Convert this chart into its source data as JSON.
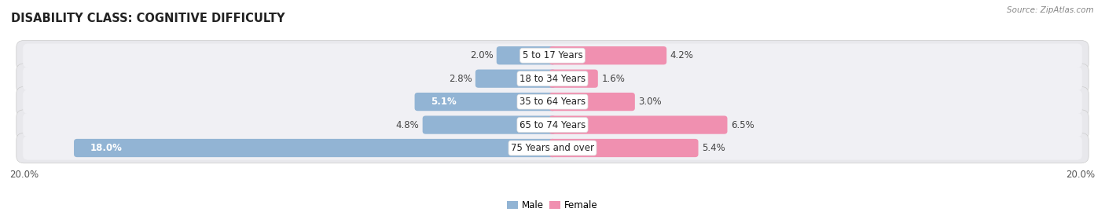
{
  "title": "DISABILITY CLASS: COGNITIVE DIFFICULTY",
  "source": "Source: ZipAtlas.com",
  "categories": [
    "5 to 17 Years",
    "18 to 34 Years",
    "35 to 64 Years",
    "65 to 74 Years",
    "75 Years and over"
  ],
  "male_values": [
    2.0,
    2.8,
    5.1,
    4.8,
    18.0
  ],
  "female_values": [
    4.2,
    1.6,
    3.0,
    6.5,
    5.4
  ],
  "male_color": "#92b4d4",
  "female_color": "#f090b0",
  "male_label": "Male",
  "female_label": "Female",
  "axis_max": 20.0,
  "row_bg_color": "#e8e8ec",
  "row_inner_color": "#f0f0f4",
  "title_fontsize": 10.5,
  "label_fontsize": 8.5,
  "value_fontsize": 8.5,
  "axis_label_fontsize": 8.5
}
